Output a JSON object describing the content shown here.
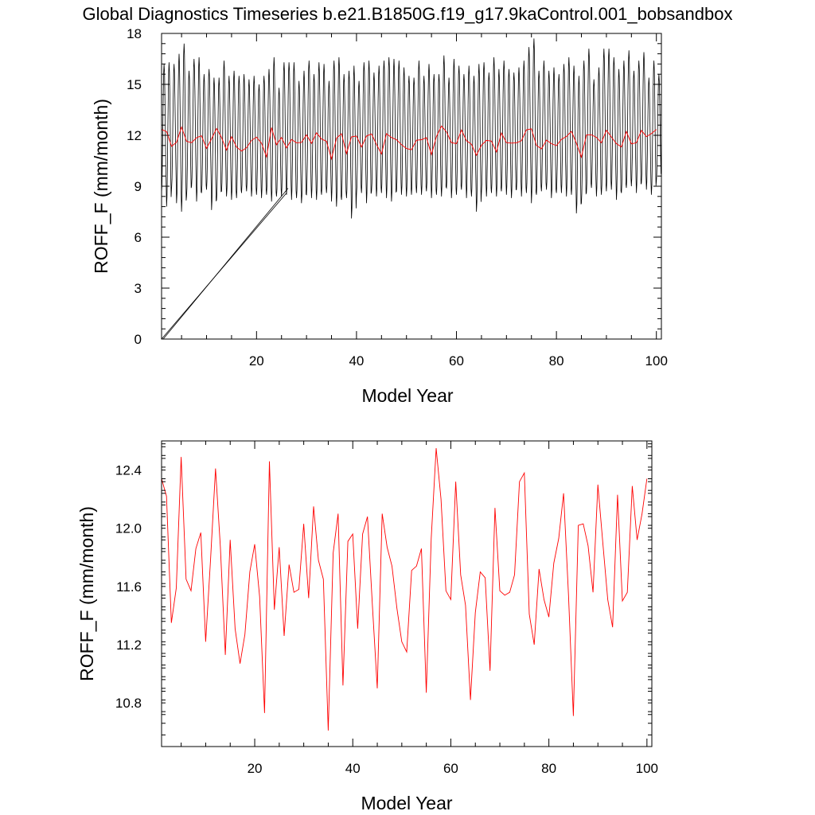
{
  "title": "Global Diagnostics Timeseries b.e21.B1850G.f19_g17.9kaControl.001_bobsandbox",
  "colors": {
    "monthly": "#000000",
    "annual": "#ff0000"
  },
  "chart_data": [
    {
      "type": "line",
      "xlabel": "Model Year",
      "ylabel": "ROFF_F (mm/month)",
      "xlim": [
        1,
        101
      ],
      "ylim": [
        0,
        18
      ],
      "x_ticks": [
        20,
        40,
        60,
        80,
        100
      ],
      "y_ticks": [
        0,
        3,
        6,
        9,
        12,
        15,
        18
      ],
      "grid": false,
      "series": [
        {
          "role": "monthly",
          "color": "#000000",
          "x_start": 1,
          "x_end": 101,
          "annual_cycle_min": [
            8.6,
            7.8,
            8.9,
            8.0,
            7.5,
            8.4,
            9.0,
            8.1,
            8.6,
            8.8,
            7.6,
            8.2,
            8.7,
            8.4,
            8.2,
            8.3,
            8.6,
            8.7,
            8.4,
            8.5,
            8.3,
            8.5,
            8.1,
            8.4,
            8.4,
            8.5,
            8.2,
            8.3,
            8.0,
            8.5,
            8.3,
            8.2,
            8.5,
            8.6,
            8.1,
            7.8,
            8.2,
            8.3,
            7.1,
            8.5,
            8.6,
            8.0,
            8.7,
            8.4,
            8.6,
            8.3,
            8.1,
            8.7,
            8.5,
            8.4,
            8.5,
            8.6,
            8.5,
            8.7,
            8.3,
            8.5,
            8.4,
            8.9,
            8.3,
            8.5,
            8.8,
            8.3,
            8.4,
            7.5,
            8.6,
            8.4,
            8.6,
            8.4,
            8.7,
            8.5,
            8.3,
            8.8,
            8.4,
            8.6,
            8.0,
            8.5,
            8.7,
            8.8,
            8.3,
            8.6,
            8.6,
            8.4,
            8.5,
            7.4,
            8.0,
            8.6,
            8.9,
            8.4,
            8.5,
            8.7,
            8.8,
            8.2,
            8.6,
            8.9,
            9.0,
            8.6,
            9.2,
            8.8,
            8.5,
            9.3
          ],
          "annual_cycle_max": [
            16.2,
            16.3,
            16.2,
            16.8,
            17.4,
            15.8,
            16.5,
            16.6,
            15.6,
            15.9,
            15.4,
            15.4,
            16.4,
            15.5,
            15.8,
            15.5,
            15.6,
            15.3,
            15.5,
            15.0,
            15.5,
            15.9,
            16.6,
            14.8,
            16.3,
            16.3,
            16.3,
            15.2,
            15.8,
            16.4,
            15.6,
            16.3,
            16.2,
            15.2,
            16.4,
            16.6,
            15.6,
            15.8,
            16.1,
            15.2,
            16.3,
            16.4,
            15.7,
            16.1,
            16.4,
            16.6,
            16.5,
            16.4,
            16.0,
            15.5,
            15.4,
            16.4,
            15.5,
            16.2,
            15.6,
            15.6,
            16.7,
            15.4,
            16.5,
            16.1,
            15.6,
            16.1,
            15.5,
            16.2,
            16.3,
            15.7,
            16.6,
            15.9,
            16.4,
            15.9,
            15.7,
            16.0,
            16.4,
            17.2,
            17.7,
            15.8,
            16.4,
            15.8,
            16.0,
            15.6,
            16.2,
            16.6,
            16.1,
            15.5,
            16.4,
            17.1,
            15.3,
            16.0,
            17.1,
            17.1,
            16.6,
            15.9,
            16.4,
            17.0,
            15.8,
            16.4,
            16.9,
            15.4,
            16.4,
            15.6
          ],
          "spinup_artifact": {
            "from": [
              1,
              0
            ],
            "to": [
              26,
              8.6
            ]
          }
        },
        {
          "role": "annual",
          "color": "#ff0000",
          "x_start": 1,
          "values": [
            12.34,
            12.22,
            11.35,
            11.59,
            12.49,
            11.65,
            11.57,
            11.86,
            11.97,
            11.22,
            11.79,
            12.41,
            11.87,
            11.13,
            11.92,
            11.31,
            11.07,
            11.27,
            11.7,
            11.89,
            11.53,
            10.73,
            12.46,
            11.44,
            11.87,
            11.26,
            11.75,
            11.56,
            11.58,
            12.03,
            11.52,
            12.15,
            11.78,
            11.65,
            10.61,
            11.83,
            12.1,
            10.92,
            11.91,
            11.96,
            11.31,
            11.96,
            12.08,
            11.47,
            10.9,
            12.1,
            11.87,
            11.74,
            11.45,
            11.22,
            11.15,
            11.71,
            11.74,
            11.86,
            10.87,
            11.93,
            12.55,
            12.2,
            11.57,
            11.51,
            12.32,
            11.68,
            11.47,
            10.82,
            11.42,
            11.7,
            11.66,
            11.02,
            12.14,
            11.57,
            11.54,
            11.56,
            11.68,
            12.32,
            12.38,
            11.41,
            11.2,
            11.72,
            11.51,
            11.39,
            11.76,
            11.93,
            12.24,
            11.54,
            10.71,
            12.02,
            12.03,
            11.88,
            11.56,
            12.3,
            11.9,
            11.51,
            11.32,
            12.23,
            11.5,
            11.56,
            12.29,
            11.92,
            12.1,
            12.34
          ]
        }
      ]
    },
    {
      "type": "line",
      "xlabel": "Model Year",
      "ylabel": "ROFF_F (mm/month)",
      "xlim": [
        1,
        101
      ],
      "ylim": [
        10.5,
        12.6
      ],
      "x_ticks": [
        20,
        40,
        60,
        80,
        100
      ],
      "y_ticks": [
        10.8,
        11.2,
        11.6,
        12.0,
        12.4
      ],
      "y_tick_labels": [
        "10.8",
        "11.2",
        "11.6",
        "12.0",
        "12.4"
      ],
      "grid": false,
      "series": [
        {
          "role": "annual",
          "color": "#ff0000",
          "x_start": 1,
          "values_ref": "same as top panel annual series"
        }
      ]
    }
  ]
}
